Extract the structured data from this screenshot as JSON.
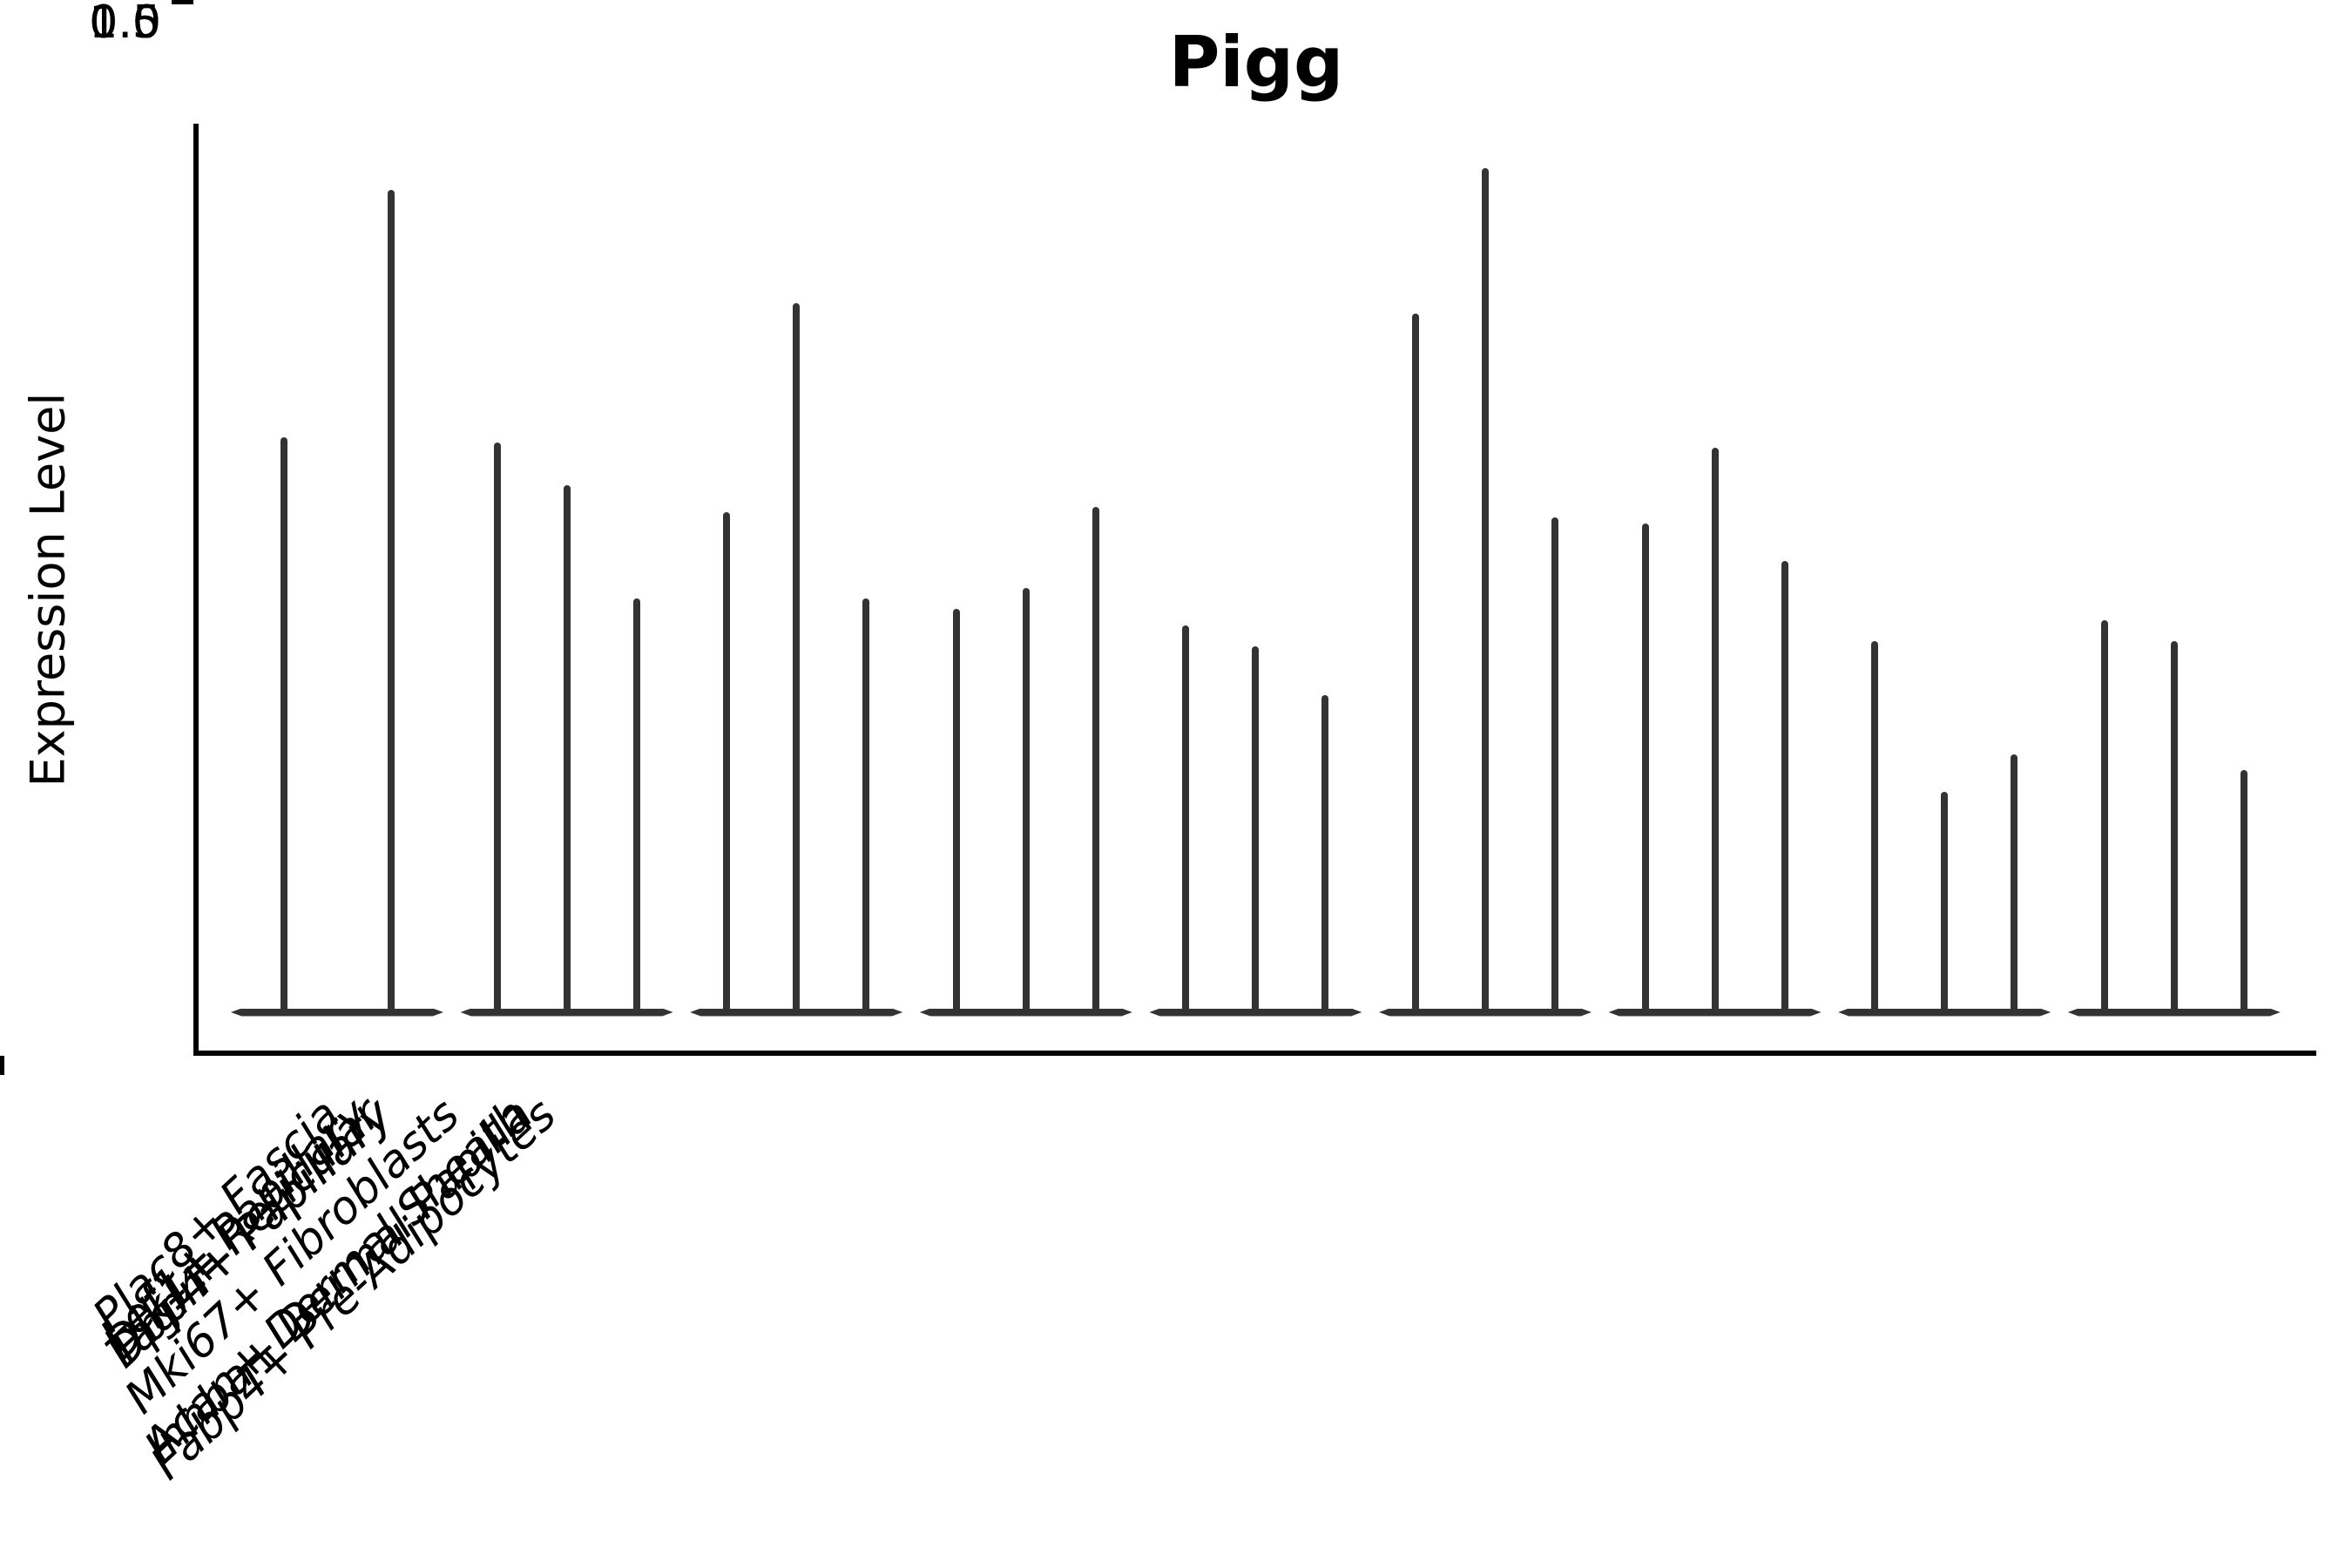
{
  "chart_data": {
    "type": "violin",
    "title": "Pigg",
    "ylabel": "Expression Level",
    "xlabel": "",
    "y_tick_labels": [
      "0.0",
      "0.5",
      "1.0",
      "1.5"
    ],
    "ylim": [
      -0.08,
      1.65
    ],
    "grid": false,
    "legend": null,
    "categories": [
      "Lef1+ Papillary",
      "Dlk1+ Reticular",
      "Dpp4+ Papillary",
      "Mki67+ Fibroblasts",
      "Fabp4+ Pre-Adipocytes",
      "Inhba+ Dermal Papilla",
      "Tagln+ Papillary",
      "Plac8+ Fascia",
      "Acan+ Dermal Sheath"
    ],
    "groups": [
      {
        "category": "Lef1+ Papillary",
        "spike_values": [
          1.07,
          1.53
        ]
      },
      {
        "category": "Dlk1+ Reticular",
        "spike_values": [
          1.06,
          0.98,
          0.77
        ]
      },
      {
        "category": "Dpp4+ Papillary",
        "spike_values": [
          0.93,
          1.32,
          0.77
        ]
      },
      {
        "category": "Mki67+ Fibroblasts",
        "spike_values": [
          0.75,
          0.79,
          0.94
        ]
      },
      {
        "category": "Fabp4+ Pre-Adipocytes",
        "spike_values": [
          0.72,
          0.68,
          0.59
        ]
      },
      {
        "category": "Inhba+ Dermal Papilla",
        "spike_values": [
          1.3,
          1.57,
          0.92
        ]
      },
      {
        "category": "Tagln+ Papillary",
        "spike_values": [
          0.91,
          1.05,
          0.84
        ]
      },
      {
        "category": "Plac8+ Fascia",
        "spike_values": [
          0.69,
          0.41,
          0.48
        ]
      },
      {
        "category": "Acan+ Dermal Sheath",
        "spike_values": [
          0.73,
          0.69,
          0.45
        ]
      }
    ],
    "colors": {
      "violin": "#333333",
      "text": "#000000",
      "background": "#ffffff"
    }
  }
}
